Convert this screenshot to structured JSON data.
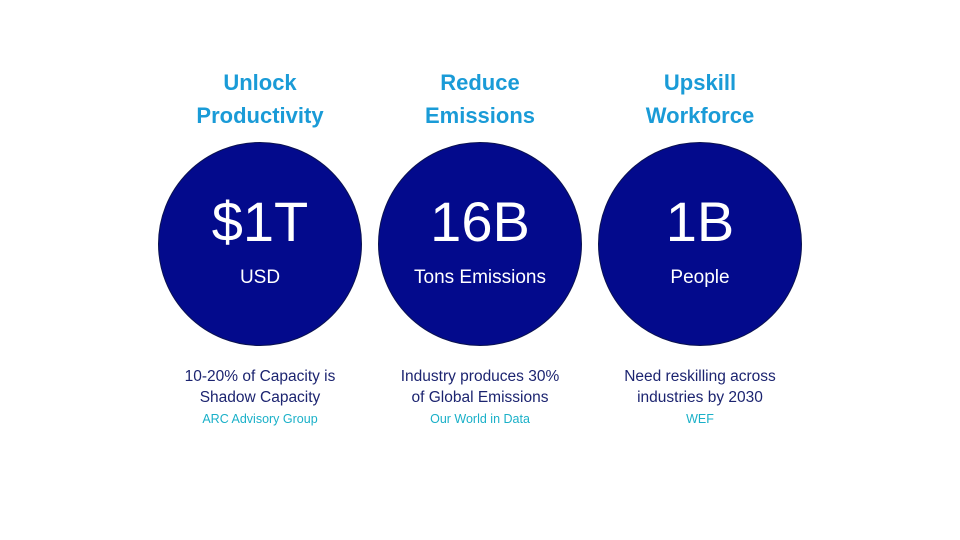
{
  "colors": {
    "title": "#1a9bd7",
    "circle": "#030a8c",
    "circle_text": "#ffffff",
    "description": "#1c2470",
    "source": "#1ab0c8"
  },
  "columns": [
    {
      "title": "Unlock\nProductivity",
      "value": "$1T",
      "unit": "USD",
      "description": "10-20% of Capacity is\nShadow Capacity",
      "source": "ARC Advisory Group"
    },
    {
      "title": "Reduce\nEmissions",
      "value": "16B",
      "unit": "Tons Emissions",
      "description": "Industry produces 30%\nof Global Emissions",
      "source": "Our World in Data"
    },
    {
      "title": "Upskill\nWorkforce",
      "value": "1B",
      "unit": "People",
      "description": "Need reskilling across\nindustries by 2030",
      "source": "WEF"
    }
  ]
}
